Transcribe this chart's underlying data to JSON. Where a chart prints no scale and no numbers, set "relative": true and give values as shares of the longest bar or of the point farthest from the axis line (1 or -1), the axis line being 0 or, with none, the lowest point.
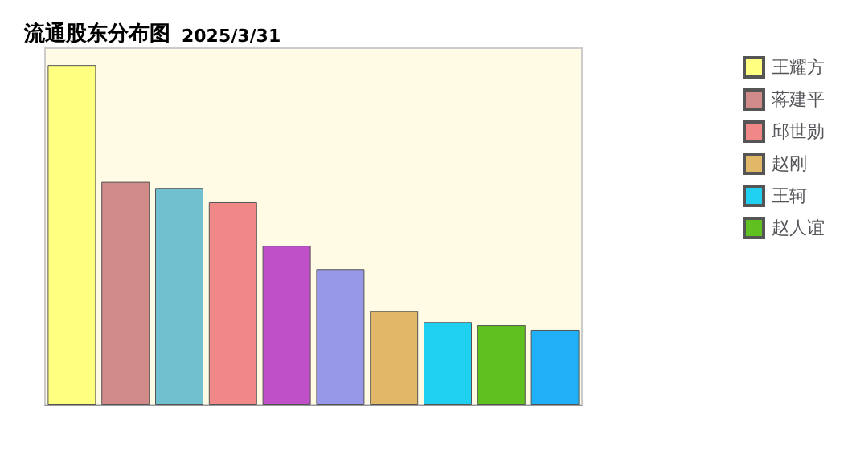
{
  "chart_data": {
    "type": "bar",
    "title": "流通股东分布图",
    "subtitle": "2025/3/31",
    "relative": true,
    "stacked": true,
    "legend": "right",
    "categories": [
      null,
      null,
      null,
      null,
      null,
      null,
      null,
      null,
      null,
      null
    ],
    "series": [
      {
        "name": "王耀方",
        "color": "#ffff80",
        "values": [
          1,
          null,
          null,
          null,
          null,
          null,
          null,
          null,
          null,
          null
        ]
      },
      {
        "name": "蒋建平",
        "color": "#d08a8a",
        "values": [
          null,
          0.656,
          null,
          null,
          null,
          null,
          null,
          null,
          null,
          null
        ]
      },
      {
        "color": "#70c0d0",
        "values": [
          null,
          null,
          0.638,
          null,
          null,
          null,
          null,
          null,
          null,
          null
        ]
      },
      {
        "name": "邱世勋",
        "color": "#f08888",
        "values": [
          null,
          null,
          null,
          0.596,
          null,
          null,
          null,
          null,
          null,
          null
        ]
      },
      {
        "color": "#c050c8",
        "values": [
          null,
          null,
          null,
          null,
          0.468,
          null,
          null,
          null,
          null,
          null
        ]
      },
      {
        "color": "#9898e8",
        "values": [
          null,
          null,
          null,
          null,
          null,
          0.399,
          null,
          null,
          null,
          null
        ]
      },
      {
        "name": "赵刚",
        "color": "#e0b868",
        "values": [
          null,
          null,
          null,
          null,
          null,
          null,
          0.275,
          null,
          null,
          null
        ]
      },
      {
        "name": "王轲",
        "color": "#20d0f0",
        "values": [
          null,
          null,
          null,
          null,
          null,
          null,
          null,
          0.243,
          null,
          null
        ]
      },
      {
        "name": "赵人谊",
        "color": "#60c020",
        "values": [
          null,
          null,
          null,
          null,
          null,
          null,
          null,
          null,
          0.234,
          null
        ]
      },
      {
        "color": "#20b0f8",
        "values": [
          null,
          null,
          null,
          null,
          null,
          null,
          null,
          null,
          null,
          0.22
        ]
      }
    ]
  }
}
